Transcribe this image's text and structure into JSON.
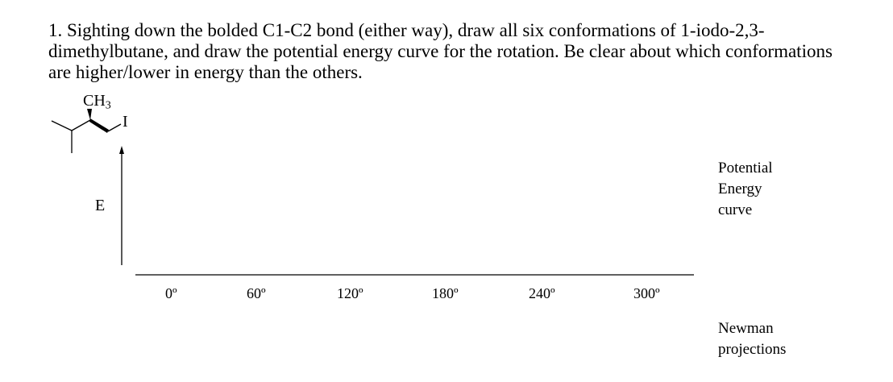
{
  "question": {
    "number": "1.",
    "text": "Sighting down the bolded C1-C2 bond (either way), draw all six conformations of 1-iodo-2,3-dimethylbutane, and draw the potential energy curve for the rotation.  Be clear about which conformations are higher/lower in energy than the others."
  },
  "structure": {
    "methyl_label": "CH",
    "methyl_sub": "3",
    "iodine_label": "I"
  },
  "graph": {
    "y_label": "E",
    "x_ticks": [
      "0º",
      "60º",
      "120º",
      "180º",
      "240º",
      "300º"
    ]
  },
  "side_labels": {
    "curve": [
      "Potential",
      "Energy",
      "curve"
    ],
    "newman": [
      "Newman",
      "projections"
    ]
  }
}
